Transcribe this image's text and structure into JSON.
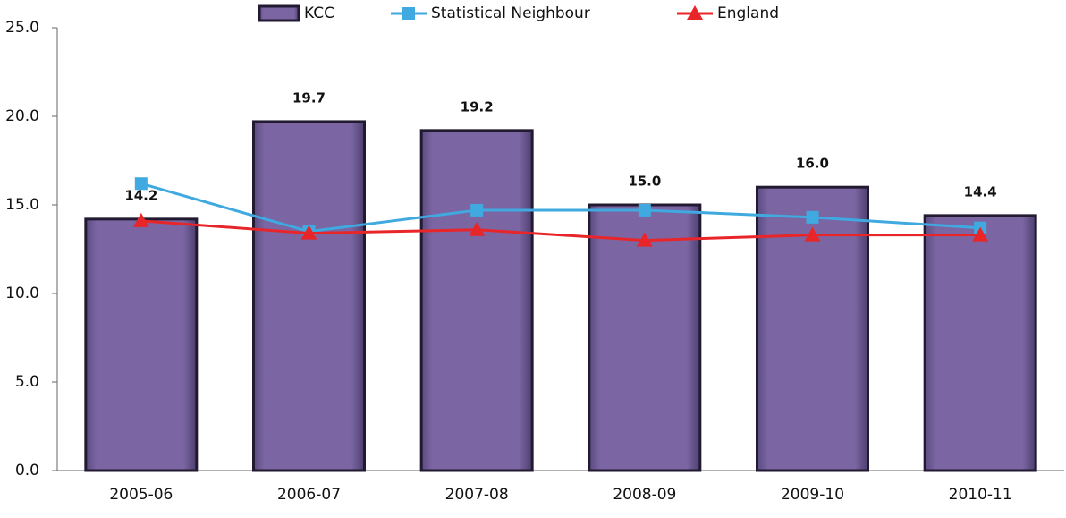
{
  "chart_data": {
    "type": "bar",
    "categories": [
      "2005-06",
      "2006-07",
      "2007-08",
      "2008-09",
      "2009-10",
      "2010-11"
    ],
    "series": [
      {
        "name": "KCC",
        "type": "bar",
        "color": "#7b66a3",
        "values": [
          14.2,
          19.7,
          19.2,
          15.0,
          16.0,
          14.4
        ],
        "value_labels": [
          "14.2",
          "19.7",
          "19.2",
          "15.0",
          "16.0",
          "14.4"
        ]
      },
      {
        "name": "Statistical Neighbour",
        "type": "line",
        "marker": "square",
        "color": "#3fa9e0",
        "values": [
          16.2,
          13.5,
          14.7,
          14.7,
          14.3,
          13.7
        ]
      },
      {
        "name": "England",
        "type": "line",
        "marker": "triangle",
        "color": "#e8262a",
        "values": [
          14.1,
          13.4,
          13.6,
          13.0,
          13.3,
          13.3
        ]
      }
    ],
    "ylim": [
      0,
      25
    ],
    "yticks": [
      {
        "value": 0,
        "label": "0.0"
      },
      {
        "value": 5,
        "label": "5.0"
      },
      {
        "value": 10,
        "label": "10.0"
      },
      {
        "value": 15,
        "label": "15.0"
      },
      {
        "value": 20,
        "label": "20.0"
      },
      {
        "value": 25,
        "label": "25.0"
      }
    ],
    "legend": "top"
  }
}
